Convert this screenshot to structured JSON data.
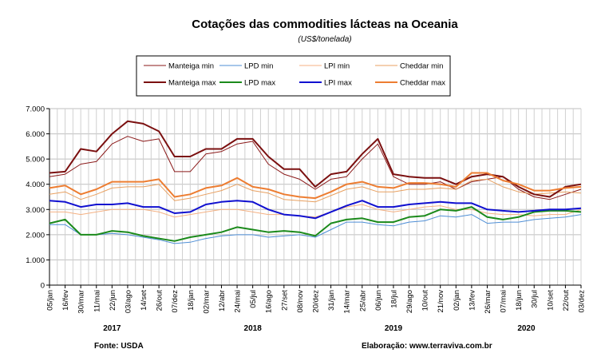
{
  "chart_data": {
    "type": "line",
    "title": "Cotações das commodities lácteas na Oceania",
    "subtitle": "(US$/tonelada)",
    "ylim": [
      0,
      7000
    ],
    "yticks": [
      "0",
      "1.000",
      "2.000",
      "3.000",
      "4.000",
      "5.000",
      "6.000",
      "7.000"
    ],
    "x_labels": [
      "05/jan",
      "16/fev",
      "30/mar",
      "11/mai",
      "22/jun",
      "03/ago",
      "14/set",
      "26/out",
      "07/dez",
      "18/jan",
      "02/mar",
      "12/abr",
      "24/mai",
      "05/jul",
      "16/ago",
      "27/set",
      "08/nov",
      "20/dez",
      "31/jan",
      "14/mar",
      "25/abr",
      "06/jun",
      "18/jul",
      "29/ago",
      "10/out",
      "21/nov",
      "02/jan",
      "13/fev",
      "26/mar",
      "07/mai",
      "18/jun",
      "30/jul",
      "10/set",
      "22/out",
      "03/dez"
    ],
    "years": [
      "2017",
      "2018",
      "2019",
      "2020"
    ],
    "legend_position": "top",
    "grid": true,
    "series": [
      {
        "name": "Manteiga min",
        "color": "#8b1a1a",
        "width": 1,
        "values": [
          4300,
          4400,
          4800,
          4900,
          5600,
          5900,
          5700,
          5800,
          4500,
          4500,
          5200,
          5300,
          5600,
          5700,
          4800,
          4400,
          4200,
          3800,
          4200,
          4300,
          5000,
          5600,
          4300,
          4000,
          4000,
          4100,
          3800,
          4100,
          4200,
          4300,
          3800,
          3500,
          3400,
          3600,
          3800
        ]
      },
      {
        "name": "LPD min",
        "color": "#4f8fd6",
        "width": 1,
        "values": [
          2400,
          2400,
          2000,
          2000,
          2050,
          2000,
          1900,
          1800,
          1650,
          1700,
          1850,
          1950,
          2000,
          2000,
          1900,
          1950,
          2000,
          1900,
          2200,
          2500,
          2500,
          2400,
          2350,
          2500,
          2550,
          2750,
          2700,
          2800,
          2450,
          2500,
          2500,
          2600,
          2650,
          2700,
          2800
        ]
      },
      {
        "name": "LPI min",
        "color": "#f4b183",
        "width": 1,
        "values": [
          2900,
          2900,
          2800,
          2900,
          3000,
          3000,
          3000,
          2900,
          2700,
          2800,
          2900,
          3000,
          3000,
          2900,
          2800,
          2800,
          2750,
          2700,
          2900,
          3100,
          3200,
          3000,
          2900,
          3000,
          3100,
          3150,
          3000,
          3000,
          2850,
          2800,
          2800,
          2750,
          2800,
          2800,
          3000
        ]
      },
      {
        "name": "Cheddar min",
        "color": "#e8a060",
        "width": 1,
        "values": [
          3600,
          3700,
          3400,
          3600,
          3850,
          3900,
          3900,
          4000,
          3350,
          3450,
          3600,
          3750,
          4000,
          3750,
          3650,
          3400,
          3350,
          3300,
          3550,
          3800,
          3900,
          3700,
          3700,
          3800,
          3800,
          3850,
          3800,
          4150,
          4200,
          3900,
          3700,
          3600,
          3650,
          3700,
          3650
        ]
      },
      {
        "name": "Manteiga max",
        "color": "#7b1010",
        "width": 2,
        "values": [
          4450,
          4500,
          5400,
          5300,
          6000,
          6500,
          6400,
          6100,
          5100,
          5100,
          5400,
          5400,
          5800,
          5800,
          5100,
          4600,
          4600,
          3900,
          4400,
          4500,
          5200,
          5800,
          4400,
          4300,
          4250,
          4250,
          4000,
          4300,
          4400,
          4300,
          3900,
          3600,
          3500,
          3900,
          4000
        ]
      },
      {
        "name": "LPD max",
        "color": "#1b8a1b",
        "width": 2,
        "values": [
          2450,
          2600,
          2000,
          2000,
          2150,
          2100,
          1950,
          1850,
          1750,
          1900,
          2000,
          2100,
          2300,
          2200,
          2100,
          2150,
          2100,
          1950,
          2450,
          2600,
          2650,
          2500,
          2500,
          2700,
          2750,
          3000,
          2950,
          3100,
          2700,
          2600,
          2700,
          2900,
          2950,
          2950,
          2900
        ]
      },
      {
        "name": "LPI max",
        "color": "#1010d0",
        "width": 2,
        "values": [
          3350,
          3300,
          3100,
          3200,
          3200,
          3250,
          3100,
          3100,
          2850,
          2900,
          3200,
          3300,
          3350,
          3300,
          3000,
          2800,
          2750,
          2650,
          2900,
          3150,
          3350,
          3100,
          3100,
          3200,
          3250,
          3300,
          3250,
          3250,
          3000,
          2950,
          2900,
          2950,
          3000,
          3000,
          3050
        ]
      },
      {
        "name": "Cheddar max",
        "color": "#ed7d31",
        "width": 2,
        "values": [
          3850,
          3950,
          3600,
          3800,
          4100,
          4100,
          4100,
          4200,
          3500,
          3600,
          3850,
          3950,
          4250,
          3900,
          3800,
          3600,
          3500,
          3450,
          3700,
          4000,
          4100,
          3900,
          3850,
          4050,
          4050,
          4000,
          3900,
          4450,
          4450,
          4150,
          4000,
          3750,
          3750,
          3850,
          3900
        ]
      }
    ]
  },
  "footer": {
    "source": "Fonte: USDA",
    "credit": "Elaboração: www.terraviva.com.br"
  }
}
